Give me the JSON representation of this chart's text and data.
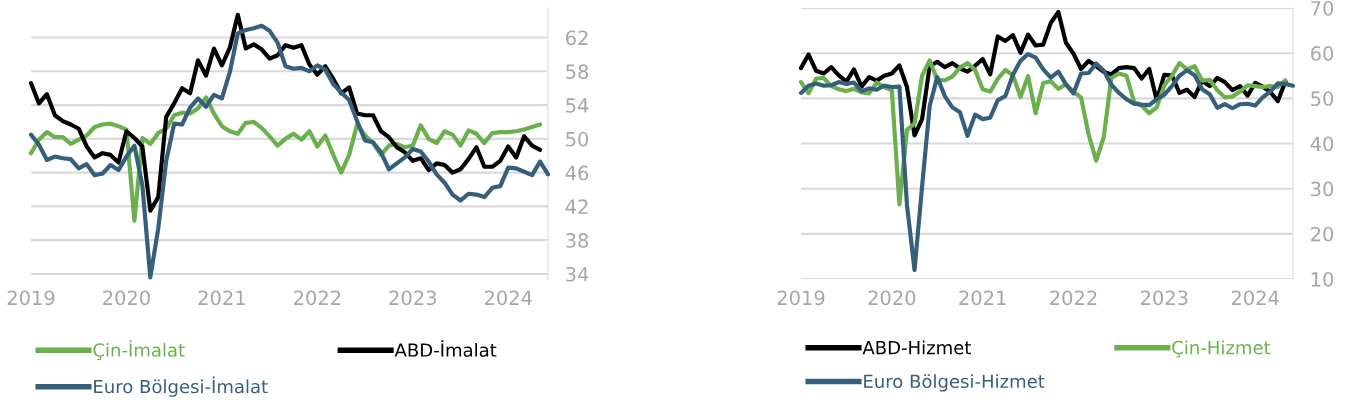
{
  "chart_data": [
    {
      "type": "line",
      "x": [
        "2019-01",
        "2019-02",
        "2019-03",
        "2019-04",
        "2019-05",
        "2019-06",
        "2019-07",
        "2019-08",
        "2019-09",
        "2019-10",
        "2019-11",
        "2019-12",
        "2020-01",
        "2020-02",
        "2020-03",
        "2020-04",
        "2020-05",
        "2020-06",
        "2020-07",
        "2020-08",
        "2020-09",
        "2020-10",
        "2020-11",
        "2020-12",
        "2021-01",
        "2021-02",
        "2021-03",
        "2021-04",
        "2021-05",
        "2021-06",
        "2021-07",
        "2021-08",
        "2021-09",
        "2021-10",
        "2021-11",
        "2021-12",
        "2022-01",
        "2022-02",
        "2022-03",
        "2022-04",
        "2022-05",
        "2022-06",
        "2022-07",
        "2022-08",
        "2022-09",
        "2022-10",
        "2022-11",
        "2022-12",
        "2023-01",
        "2023-02",
        "2023-03",
        "2023-04",
        "2023-05",
        "2023-06",
        "2023-07",
        "2023-08",
        "2023-09",
        "2023-10",
        "2023-11",
        "2023-12",
        "2024-01",
        "2024-02",
        "2024-03",
        "2024-04",
        "2024-05",
        "2024-06"
      ],
      "series": [
        {
          "name": "Çin-İmalat",
          "color": "#6ab04c",
          "values": [
            48.3,
            49.9,
            50.8,
            50.2,
            50.2,
            49.4,
            49.9,
            50.4,
            51.4,
            51.7,
            51.8,
            51.5,
            51.1,
            40.3,
            50.1,
            49.4,
            50.7,
            51.2,
            52.8,
            53.1,
            53.0,
            53.6,
            54.9,
            53.0,
            51.5,
            50.9,
            50.6,
            51.9,
            52.0,
            51.3,
            50.3,
            49.2,
            50.0,
            50.6,
            49.9,
            50.9,
            49.1,
            50.4,
            48.1,
            46.0,
            48.1,
            51.7,
            50.4,
            49.5,
            48.1,
            49.2,
            49.4,
            49.0,
            49.2,
            51.6,
            50.0,
            49.5,
            50.9,
            50.5,
            49.2,
            51.0,
            50.6,
            49.5,
            50.7,
            50.8,
            50.8,
            50.9,
            51.1,
            51.4,
            51.7,
            null
          ]
        },
        {
          "name": "ABD-İmalat",
          "color": "#000000",
          "values": [
            56.6,
            54.2,
            55.3,
            52.8,
            52.1,
            51.7,
            51.2,
            49.1,
            47.8,
            48.3,
            48.1,
            47.2,
            50.9,
            50.1,
            49.1,
            41.5,
            43.1,
            52.6,
            54.2,
            56.0,
            55.4,
            59.3,
            57.5,
            60.7,
            58.7,
            60.8,
            64.7,
            60.7,
            61.2,
            60.6,
            59.5,
            59.9,
            61.1,
            60.8,
            61.1,
            58.8,
            57.6,
            58.6,
            57.1,
            55.4,
            56.1,
            53.0,
            52.8,
            52.8,
            50.9,
            50.2,
            49.0,
            48.4,
            47.4,
            47.7,
            46.3,
            47.1,
            46.9,
            46.0,
            46.4,
            47.6,
            49.0,
            46.7,
            46.7,
            47.4,
            49.1,
            47.8,
            50.3,
            49.2,
            48.7,
            null
          ]
        },
        {
          "name": "Euro Bölgesi-İmalat",
          "color": "#365f7b",
          "values": [
            50.5,
            49.3,
            47.5,
            47.9,
            47.7,
            47.6,
            46.5,
            47.0,
            45.7,
            45.9,
            46.9,
            46.3,
            47.9,
            49.2,
            44.5,
            33.6,
            39.4,
            47.4,
            51.8,
            51.7,
            53.7,
            54.8,
            53.8,
            55.2,
            54.8,
            57.9,
            62.5,
            62.9,
            63.1,
            63.4,
            62.8,
            61.4,
            58.6,
            58.3,
            58.4,
            58.0,
            58.7,
            58.2,
            56.5,
            55.5,
            54.6,
            52.1,
            49.8,
            49.6,
            48.4,
            46.4,
            47.1,
            47.8,
            48.8,
            48.5,
            47.3,
            45.8,
            44.8,
            43.4,
            42.7,
            43.5,
            43.4,
            43.1,
            44.2,
            44.4,
            46.6,
            46.5,
            46.1,
            45.7,
            47.3,
            45.8
          ]
        }
      ],
      "xlim": [
        "2019-01",
        "2024-06"
      ],
      "xticks": [
        {
          "value": "2019-01",
          "label": "2019"
        },
        {
          "value": "2020-01",
          "label": "2020"
        },
        {
          "value": "2021-01",
          "label": "2021"
        },
        {
          "value": "2022-01",
          "label": "2022"
        },
        {
          "value": "2023-01",
          "label": "2023"
        },
        {
          "value": "2024-01",
          "label": "2024"
        }
      ],
      "ylim": [
        33.4,
        65.5
      ],
      "yticks": [
        34,
        38,
        42,
        46,
        50,
        54,
        58,
        62
      ],
      "grid": "y",
      "legend": "bottom",
      "line_style": "solid",
      "marker": "none"
    },
    {
      "type": "line",
      "x": [
        "2019-01",
        "2019-02",
        "2019-03",
        "2019-04",
        "2019-05",
        "2019-06",
        "2019-07",
        "2019-08",
        "2019-09",
        "2019-10",
        "2019-11",
        "2019-12",
        "2020-01",
        "2020-02",
        "2020-03",
        "2020-04",
        "2020-05",
        "2020-06",
        "2020-07",
        "2020-08",
        "2020-09",
        "2020-10",
        "2020-11",
        "2020-12",
        "2021-01",
        "2021-02",
        "2021-03",
        "2021-04",
        "2021-05",
        "2021-06",
        "2021-07",
        "2021-08",
        "2021-09",
        "2021-10",
        "2021-11",
        "2021-12",
        "2022-01",
        "2022-02",
        "2022-03",
        "2022-04",
        "2022-05",
        "2022-06",
        "2022-07",
        "2022-08",
        "2022-09",
        "2022-10",
        "2022-11",
        "2022-12",
        "2023-01",
        "2023-02",
        "2023-03",
        "2023-04",
        "2023-05",
        "2023-06",
        "2023-07",
        "2023-08",
        "2023-09",
        "2023-10",
        "2023-11",
        "2023-12",
        "2024-01",
        "2024-02",
        "2024-03",
        "2024-04",
        "2024-05",
        "2024-06"
      ],
      "series": [
        {
          "name": "ABD-Hizmet",
          "color": "#000000",
          "values": [
            56.7,
            59.7,
            56.1,
            55.5,
            56.9,
            55.1,
            53.7,
            56.4,
            52.6,
            54.7,
            53.9,
            55.0,
            55.5,
            57.3,
            52.5,
            41.8,
            45.4,
            57.1,
            58.1,
            56.9,
            57.8,
            56.6,
            55.9,
            57.2,
            58.7,
            55.3,
            63.7,
            62.7,
            64.0,
            60.1,
            64.1,
            61.7,
            61.9,
            66.7,
            69.1,
            62.3,
            59.9,
            56.5,
            58.3,
            57.1,
            55.9,
            55.3,
            56.7,
            56.9,
            56.7,
            54.4,
            56.5,
            49.6,
            55.2,
            55.1,
            51.2,
            51.9,
            50.3,
            53.9,
            52.7,
            54.5,
            53.6,
            51.8,
            52.7,
            50.6,
            53.4,
            52.6,
            51.4,
            49.4,
            53.8,
            null
          ]
        },
        {
          "name": "Çin-Hizmet",
          "color": "#6ab04c",
          "values": [
            53.6,
            51.1,
            54.4,
            54.5,
            52.7,
            52.0,
            51.6,
            52.1,
            51.3,
            51.1,
            53.5,
            52.5,
            51.8,
            26.5,
            43.0,
            44.4,
            55.0,
            58.4,
            54.1,
            54.0,
            54.8,
            56.8,
            57.8,
            56.3,
            52.0,
            51.5,
            54.3,
            56.3,
            55.1,
            50.3,
            54.9,
            46.7,
            53.4,
            53.8,
            52.1,
            53.1,
            51.4,
            50.2,
            42.0,
            36.2,
            41.4,
            54.5,
            55.5,
            55.0,
            49.3,
            48.4,
            46.7,
            48.0,
            52.9,
            55.0,
            57.8,
            56.4,
            57.1,
            53.9,
            54.1,
            51.8,
            50.2,
            50.4,
            51.5,
            52.9,
            52.7,
            52.5,
            52.7,
            52.5,
            54.0,
            null
          ]
        },
        {
          "name": "Euro Bölgesi-Hizmet",
          "color": "#365f7b",
          "values": [
            51.2,
            52.8,
            53.3,
            52.8,
            52.9,
            53.6,
            53.2,
            53.5,
            51.6,
            52.2,
            51.9,
            52.8,
            52.5,
            52.6,
            26.4,
            12.0,
            30.5,
            48.3,
            54.7,
            50.5,
            48.0,
            46.9,
            41.7,
            46.4,
            45.4,
            45.7,
            49.6,
            50.5,
            55.2,
            58.3,
            59.8,
            59.0,
            56.4,
            54.6,
            55.9,
            53.1,
            51.1,
            55.5,
            55.6,
            57.7,
            56.1,
            53.0,
            51.2,
            49.8,
            48.8,
            48.6,
            48.5,
            49.8,
            50.8,
            52.7,
            55.0,
            56.2,
            55.1,
            52.0,
            50.9,
            47.9,
            48.7,
            47.8,
            48.7,
            48.8,
            48.4,
            50.2,
            51.5,
            53.3,
            53.2,
            52.8
          ]
        }
      ],
      "xlim": [
        "2019-01",
        "2024-06"
      ],
      "xticks": [
        {
          "value": "2019-01",
          "label": "2019"
        },
        {
          "value": "2020-01",
          "label": "2020"
        },
        {
          "value": "2021-01",
          "label": "2021"
        },
        {
          "value": "2022-01",
          "label": "2022"
        },
        {
          "value": "2023-01",
          "label": "2023"
        },
        {
          "value": "2024-01",
          "label": "2024"
        }
      ],
      "ylim": [
        10,
        70
      ],
      "yticks": [
        10,
        20,
        30,
        40,
        50,
        60,
        70
      ],
      "grid": "y",
      "legend": "bottom",
      "line_style": "solid",
      "marker": "none"
    }
  ]
}
